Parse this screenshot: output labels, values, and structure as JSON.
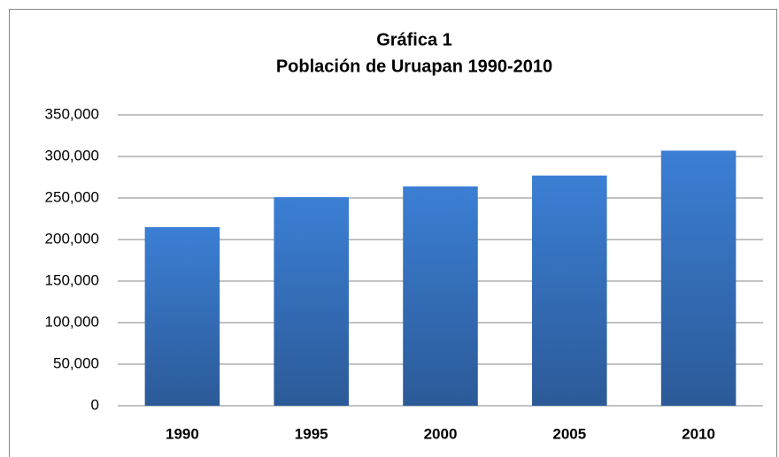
{
  "chart_data": {
    "type": "bar",
    "title": "Gráfica 1",
    "subtitle": "Población de Uruapan 1990-2010",
    "categories": [
      "1990",
      "1995",
      "2000",
      "2005",
      "2010"
    ],
    "values": [
      215000,
      251000,
      264000,
      277000,
      307000
    ],
    "color": "#3b7fd4",
    "ylim": [
      0,
      350000
    ],
    "yticks": [
      0,
      {
        "value": 50000,
        "label": "50,000"
      },
      {
        "value": 100000,
        "label": "100,000"
      },
      {
        "value": 150000,
        "label": "150,000"
      },
      {
        "value": 200000,
        "label": "200,000"
      },
      {
        "value": 250000,
        "label": "250,000"
      },
      {
        "value": 300000,
        "label": "300,000"
      },
      {
        "value": 350000,
        "label": "350,000"
      }
    ],
    "grid": true
  }
}
